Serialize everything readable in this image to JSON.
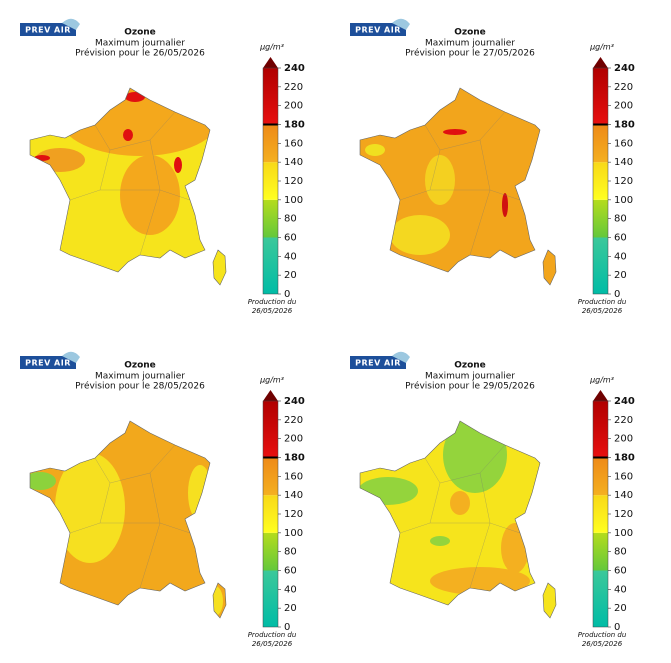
{
  "colorbar_scale": {
    "bands": [
      {
        "range": [
          0,
          60
        ],
        "colors": [
          "#00bca6",
          "#3cc89a"
        ]
      },
      {
        "range": [
          60,
          100
        ],
        "colors": [
          "#64c83c",
          "#b4dc1c"
        ]
      },
      {
        "range": [
          100,
          140
        ],
        "colors": [
          "#ffff20",
          "#f8d818"
        ]
      },
      {
        "range": [
          140,
          180
        ],
        "colors": [
          "#f4b020",
          "#ee8a18"
        ]
      },
      {
        "range": [
          180,
          240
        ],
        "colors": [
          "#e81010",
          "#b00000"
        ]
      }
    ],
    "cap_color": "#700000"
  },
  "panels": [
    {
      "logo": "PREV AIR",
      "title": "Ozone",
      "subtitle": "Maximum journalier",
      "forecast": "Prévision pour le 26/05/2026",
      "unit": "µg/m³",
      "colorbar": {
        "ticks": [
          0,
          20,
          40,
          60,
          80,
          100,
          120,
          140,
          160,
          180,
          200,
          220,
          240
        ],
        "threshold": 180
      },
      "production": "Production du",
      "production_date": "26/05/2026"
    },
    {
      "logo": "PREV AIR",
      "title": "Ozone",
      "subtitle": "Maximum journalier",
      "forecast": "Prévision pour le 27/05/2026",
      "unit": "µg/m³",
      "colorbar": {
        "ticks": [
          0,
          20,
          40,
          60,
          80,
          100,
          120,
          140,
          160,
          180,
          200,
          220,
          240
        ],
        "threshold": 180
      },
      "production": "Production du",
      "production_date": "26/05/2026"
    },
    {
      "logo": "PREV AIR",
      "title": "Ozone",
      "subtitle": "Maximum journalier",
      "forecast": "Prévision pour le 28/05/2026",
      "unit": "µg/m³",
      "colorbar": {
        "ticks": [
          0,
          20,
          40,
          60,
          80,
          100,
          120,
          140,
          160,
          180,
          200,
          220,
          240
        ],
        "threshold": 180
      },
      "production": "Production du",
      "production_date": "26/05/2026"
    },
    {
      "logo": "PREV AIR",
      "title": "Ozone",
      "subtitle": "Maximum journalier",
      "forecast": "Prévision pour le 29/05/2026",
      "unit": "µg/m³",
      "colorbar": {
        "ticks": [
          0,
          20,
          40,
          60,
          80,
          100,
          120,
          140,
          160,
          180,
          200,
          220,
          240
        ],
        "threshold": 180
      },
      "production": "Production du",
      "production_date": "26/05/2026"
    }
  ]
}
